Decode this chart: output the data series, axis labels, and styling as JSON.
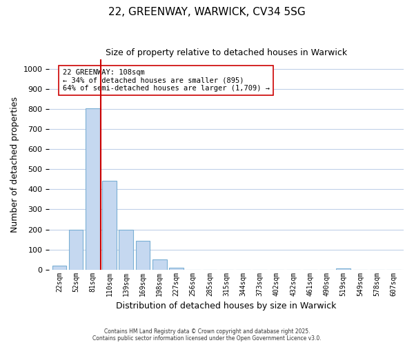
{
  "title": "22, GREENWAY, WARWICK, CV34 5SG",
  "subtitle": "Size of property relative to detached houses in Warwick",
  "xlabel": "Distribution of detached houses by size in Warwick",
  "ylabel": "Number of detached properties",
  "bin_labels": [
    "22sqm",
    "52sqm",
    "81sqm",
    "110sqm",
    "139sqm",
    "169sqm",
    "198sqm",
    "227sqm",
    "256sqm",
    "285sqm",
    "315sqm",
    "344sqm",
    "373sqm",
    "402sqm",
    "432sqm",
    "461sqm",
    "490sqm",
    "519sqm",
    "549sqm",
    "578sqm",
    "607sqm"
  ],
  "bar_values": [
    20,
    197,
    803,
    444,
    198,
    143,
    50,
    10,
    0,
    0,
    0,
    0,
    0,
    0,
    0,
    0,
    0,
    5,
    0,
    0,
    0
  ],
  "bar_color": "#c5d8f0",
  "bar_edge_color": "#7aafd4",
  "vline_color": "#cc0000",
  "annotation_text": "22 GREENWAY: 108sqm\n← 34% of detached houses are smaller (895)\n64% of semi-detached houses are larger (1,709) →",
  "annotation_box_color": "#ffffff",
  "annotation_box_edge": "#cc0000",
  "ylim": [
    0,
    1050
  ],
  "yticks": [
    0,
    100,
    200,
    300,
    400,
    500,
    600,
    700,
    800,
    900,
    1000
  ],
  "footer_line1": "Contains HM Land Registry data © Crown copyright and database right 2025.",
  "footer_line2": "Contains public sector information licensed under the Open Government Licence v3.0.",
  "background_color": "#ffffff",
  "grid_color": "#c0d0e8"
}
